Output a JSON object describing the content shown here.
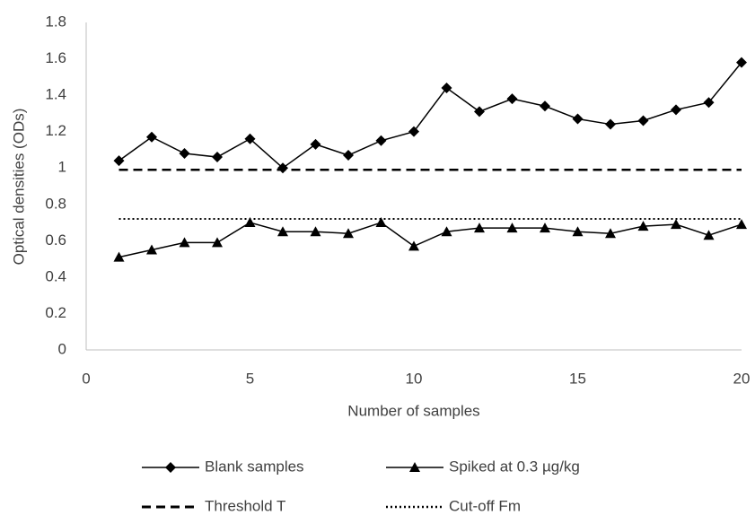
{
  "chart_data": {
    "type": "line",
    "xlabel": "Number of samples",
    "ylabel": "Optical densities (ODs)",
    "x": [
      1,
      2,
      3,
      4,
      5,
      6,
      7,
      8,
      9,
      10,
      11,
      12,
      13,
      14,
      15,
      16,
      17,
      18,
      19,
      20
    ],
    "series": [
      {
        "name": "Blank samples",
        "color": "#000000",
        "marker": "diamond",
        "dash": "solid",
        "values": [
          1.04,
          1.17,
          1.08,
          1.06,
          1.16,
          1.0,
          1.13,
          1.07,
          1.15,
          1.2,
          1.44,
          1.31,
          1.38,
          1.34,
          1.27,
          1.24,
          1.26,
          1.32,
          1.36,
          1.58
        ]
      },
      {
        "name": "Spiked at 0.3 µg/kg",
        "color": "#000000",
        "marker": "triangle",
        "dash": "solid",
        "values": [
          0.51,
          0.55,
          0.59,
          0.59,
          0.7,
          0.65,
          0.65,
          0.64,
          0.7,
          0.57,
          0.65,
          0.67,
          0.67,
          0.67,
          0.65,
          0.64,
          0.68,
          0.69,
          0.63,
          0.69
        ]
      },
      {
        "name": "Threshold T",
        "color": "#000000",
        "marker": "none",
        "dash": "dashed",
        "values": [
          0.99,
          0.99,
          0.99,
          0.99,
          0.99,
          0.99,
          0.99,
          0.99,
          0.99,
          0.99,
          0.99,
          0.99,
          0.99,
          0.99,
          0.99,
          0.99,
          0.99,
          0.99,
          0.99,
          0.99
        ]
      },
      {
        "name": "Cut-off Fm",
        "color": "#000000",
        "marker": "none",
        "dash": "dotted",
        "values": [
          0.72,
          0.72,
          0.72,
          0.72,
          0.72,
          0.72,
          0.72,
          0.72,
          0.72,
          0.72,
          0.72,
          0.72,
          0.72,
          0.72,
          0.72,
          0.72,
          0.72,
          0.72,
          0.72,
          0.72
        ]
      }
    ],
    "xlim": [
      0,
      20
    ],
    "xticks": [
      0,
      5,
      10,
      15,
      20
    ],
    "ylim": [
      0,
      1.8
    ],
    "yticks": [
      0,
      0.2,
      0.4,
      0.6,
      0.8,
      1,
      1.2,
      1.4,
      1.6,
      1.8
    ],
    "grid": false,
    "legend": "bottom"
  }
}
